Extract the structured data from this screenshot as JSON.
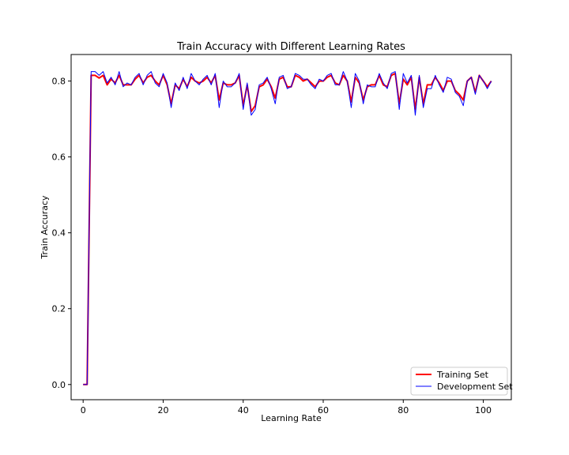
{
  "chart_data": {
    "type": "line",
    "title": "Train Accuracy with Different Learning Rates",
    "xlabel": "Learning Rate",
    "ylabel": "Train Accuracy",
    "xlim": [
      -3,
      107
    ],
    "ylim": [
      -0.04,
      0.87
    ],
    "xticks": [
      0,
      20,
      40,
      60,
      80,
      100
    ],
    "yticks": [
      0.0,
      0.2,
      0.4,
      0.6,
      0.8
    ],
    "ytick_labels": [
      "0.0",
      "0.2",
      "0.4",
      "0.6",
      "0.8"
    ],
    "grid": false,
    "legend_position": "lower-right",
    "series": [
      {
        "name": "Training Set",
        "color": "#ff0000",
        "values": [
          0.0,
          0.0,
          0.815,
          0.815,
          0.808,
          0.815,
          0.79,
          0.805,
          0.795,
          0.815,
          0.79,
          0.79,
          0.79,
          0.805,
          0.815,
          0.795,
          0.81,
          0.815,
          0.8,
          0.79,
          0.815,
          0.79,
          0.74,
          0.79,
          0.78,
          0.805,
          0.785,
          0.81,
          0.8,
          0.795,
          0.8,
          0.81,
          0.795,
          0.815,
          0.75,
          0.795,
          0.79,
          0.79,
          0.795,
          0.815,
          0.735,
          0.79,
          0.72,
          0.735,
          0.785,
          0.79,
          0.805,
          0.785,
          0.755,
          0.805,
          0.81,
          0.785,
          0.785,
          0.815,
          0.81,
          0.8,
          0.805,
          0.795,
          0.785,
          0.8,
          0.8,
          0.81,
          0.815,
          0.795,
          0.79,
          0.815,
          0.8,
          0.745,
          0.81,
          0.795,
          0.75,
          0.785,
          0.79,
          0.79,
          0.815,
          0.79,
          0.785,
          0.815,
          0.82,
          0.74,
          0.805,
          0.79,
          0.81,
          0.725,
          0.81,
          0.74,
          0.79,
          0.79,
          0.81,
          0.795,
          0.775,
          0.8,
          0.8,
          0.775,
          0.765,
          0.75,
          0.8,
          0.81,
          0.77,
          0.815,
          0.8,
          0.785,
          0.8
        ]
      },
      {
        "name": "Development Set",
        "color": "#0000ff",
        "values": [
          0.0,
          0.0,
          0.825,
          0.825,
          0.815,
          0.825,
          0.795,
          0.81,
          0.79,
          0.825,
          0.785,
          0.795,
          0.79,
          0.81,
          0.82,
          0.79,
          0.815,
          0.825,
          0.795,
          0.785,
          0.82,
          0.795,
          0.73,
          0.795,
          0.775,
          0.81,
          0.78,
          0.82,
          0.8,
          0.79,
          0.805,
          0.815,
          0.79,
          0.82,
          0.73,
          0.8,
          0.785,
          0.785,
          0.795,
          0.82,
          0.725,
          0.795,
          0.71,
          0.725,
          0.79,
          0.795,
          0.81,
          0.78,
          0.74,
          0.81,
          0.815,
          0.78,
          0.785,
          0.82,
          0.815,
          0.805,
          0.805,
          0.79,
          0.78,
          0.805,
          0.8,
          0.815,
          0.82,
          0.79,
          0.79,
          0.825,
          0.8,
          0.73,
          0.82,
          0.8,
          0.74,
          0.79,
          0.785,
          0.785,
          0.82,
          0.795,
          0.78,
          0.82,
          0.825,
          0.725,
          0.82,
          0.795,
          0.815,
          0.71,
          0.815,
          0.73,
          0.78,
          0.78,
          0.815,
          0.79,
          0.77,
          0.81,
          0.805,
          0.77,
          0.76,
          0.735,
          0.8,
          0.81,
          0.765,
          0.815,
          0.8,
          0.78,
          0.8
        ]
      }
    ]
  }
}
